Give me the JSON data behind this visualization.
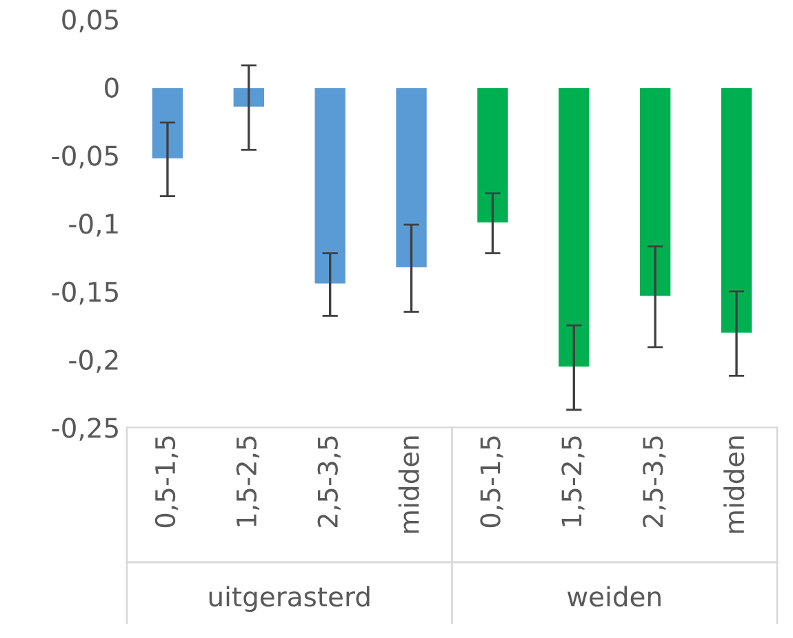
{
  "chart_data": {
    "type": "bar",
    "categories": [
      "0,5-1,5",
      "1,5-2,5",
      "2,5-3,5",
      "midden",
      "0,5-1,5",
      "1,5-2,5",
      "2,5-3,5",
      "midden"
    ],
    "values": [
      -0.053,
      -0.015,
      -0.145,
      -0.133,
      -0.1,
      -0.206,
      -0.154,
      -0.181
    ],
    "errors": [
      0.027,
      0.031,
      0.023,
      0.032,
      0.022,
      0.031,
      0.037,
      0.031
    ],
    "colors": [
      "#5b9bd5",
      "#5b9bd5",
      "#5b9bd5",
      "#5b9bd5",
      "#00b050",
      "#00b050",
      "#00b050",
      "#00b050"
    ],
    "annotations": [
      "uitgerasterd",
      "weiden"
    ],
    "ylim": [
      -0.25,
      0.05
    ],
    "yticks": [
      {
        "value": 0.05,
        "label": "0,05"
      },
      {
        "value": 0,
        "label": "0"
      },
      {
        "value": -0.05,
        "label": "-0,05"
      },
      {
        "value": -0.1,
        "label": "-0,1"
      },
      {
        "value": -0.15,
        "label": "-0,15"
      },
      {
        "value": -0.2,
        "label": "-0,2"
      },
      {
        "value": -0.25,
        "label": "-0,25"
      }
    ]
  }
}
